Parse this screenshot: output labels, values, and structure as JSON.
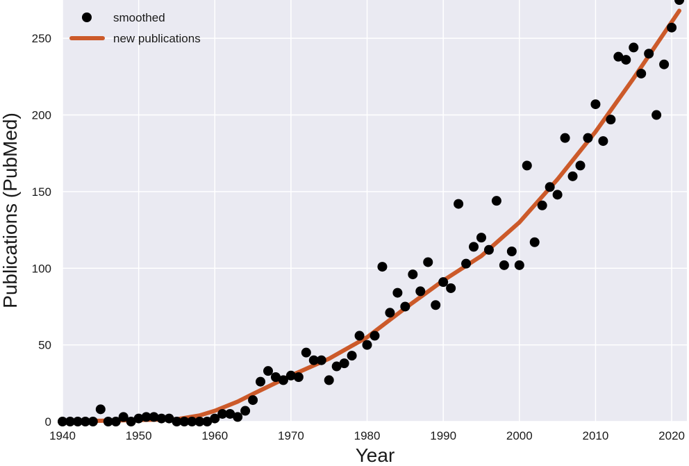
{
  "chart_data": {
    "type": "scatter",
    "xlabel": "Year",
    "ylabel": "Publications (PubMed)",
    "xlim": [
      1940,
      2022
    ],
    "ylim": [
      0,
      275
    ],
    "xticks": [
      1940,
      1950,
      1960,
      1970,
      1980,
      1990,
      2000,
      2010,
      2020
    ],
    "yticks": [
      0,
      50,
      100,
      150,
      200,
      250
    ],
    "grid": true,
    "legend_position": "top-left",
    "colors": {
      "background": "#eaeaf2",
      "grid": "#ffffff",
      "points": "#000000",
      "line": "#cc5a2a"
    },
    "series": [
      {
        "name": "smoothed",
        "type": "scatter",
        "x": [
          1940,
          1941,
          1942,
          1943,
          1944,
          1945,
          1946,
          1947,
          1948,
          1949,
          1950,
          1951,
          1952,
          1953,
          1954,
          1955,
          1956,
          1957,
          1958,
          1959,
          1960,
          1961,
          1962,
          1963,
          1964,
          1965,
          1966,
          1967,
          1968,
          1969,
          1970,
          1971,
          1972,
          1973,
          1974,
          1975,
          1976,
          1977,
          1978,
          1979,
          1980,
          1981,
          1982,
          1983,
          1984,
          1985,
          1986,
          1987,
          1988,
          1989,
          1990,
          1991,
          1992,
          1993,
          1994,
          1995,
          1996,
          1997,
          1998,
          1999,
          2000,
          2001,
          2002,
          2003,
          2004,
          2005,
          2006,
          2007,
          2008,
          2009,
          2010,
          2011,
          2012,
          2013,
          2014,
          2015,
          2016,
          2017,
          2018,
          2019,
          2020,
          2021
        ],
        "y": [
          0,
          0,
          0,
          0,
          0,
          8,
          0,
          0,
          3,
          0,
          2,
          3,
          3,
          2,
          2,
          0,
          0,
          0,
          0,
          0,
          2,
          5,
          5,
          3,
          7,
          14,
          26,
          33,
          29,
          27,
          30,
          29,
          45,
          40,
          40,
          27,
          36,
          38,
          43,
          56,
          50,
          56,
          101,
          71,
          84,
          75,
          96,
          85,
          104,
          76,
          91,
          87,
          142,
          103,
          114,
          120,
          112,
          144,
          102,
          111,
          102,
          167,
          117,
          141,
          153,
          148,
          185,
          160,
          167,
          185,
          207,
          183,
          197,
          238,
          236,
          244,
          227,
          240,
          200,
          233,
          257,
          275
        ]
      },
      {
        "name": "new publications",
        "type": "line",
        "x": [
          1940,
          1945,
          1950,
          1955,
          1958,
          1960,
          1963,
          1965,
          1970,
          1975,
          1980,
          1985,
          1990,
          1995,
          2000,
          2005,
          2010,
          2015,
          2021
        ],
        "y": [
          0.5,
          0.5,
          1,
          1.5,
          4,
          7,
          13,
          18,
          30,
          41,
          55,
          74,
          92,
          108,
          130,
          158,
          189,
          224,
          268
        ]
      }
    ]
  }
}
